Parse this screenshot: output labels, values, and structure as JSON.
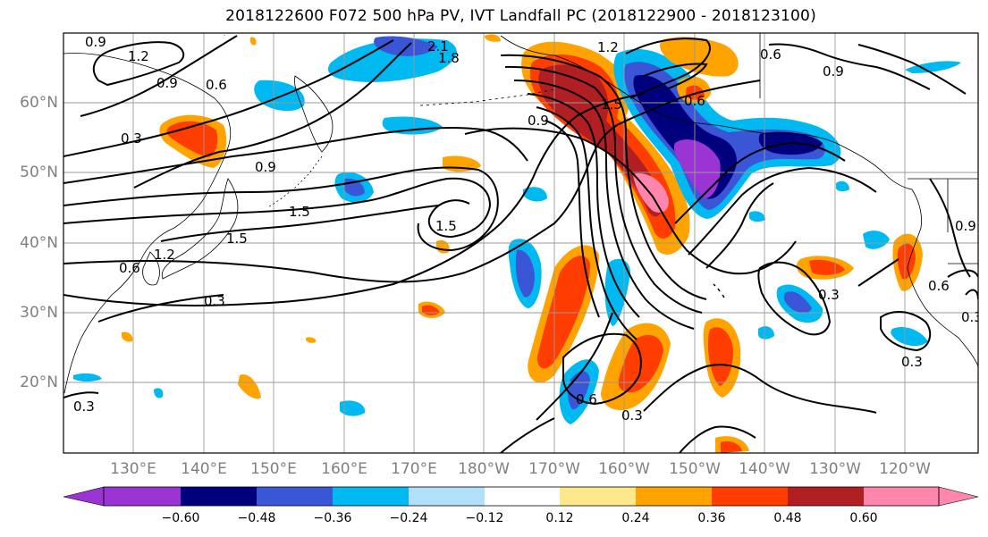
{
  "title": "2018122600 F072 500 hPa PV, IVT Landfall PC (2018122900 - 2018123100)",
  "map": {
    "lon_labels": [
      "130°E",
      "140°E",
      "150°E",
      "160°E",
      "170°E",
      "180°W",
      "170°W",
      "160°W",
      "150°W",
      "140°W",
      "130°W",
      "120°W"
    ],
    "lat_labels": [
      "60°N",
      "50°N",
      "40°N",
      "30°N",
      "20°N"
    ],
    "contour_labels": [
      "0.9",
      "1.2",
      "0.9",
      "0.6",
      "0.3",
      "0.9",
      "1.5",
      "1.5",
      "1.2",
      "0.6",
      "0.3",
      "1.5",
      "2.1",
      "1.8",
      "1.2",
      "0.9",
      "0.6",
      "1.5",
      "0.6",
      "0.9",
      "0.9",
      "0.3",
      "0.3",
      "0.6",
      "0.3",
      "0.6",
      "0.3",
      "0.9",
      "1.2",
      "0.6",
      "0.3",
      "0.3"
    ]
  },
  "colorbar": {
    "ticks": [
      "−0.60",
      "−0.48",
      "−0.36",
      "−0.24",
      "−0.12",
      "0.12",
      "0.24",
      "0.36",
      "0.48",
      "0.60"
    ],
    "colors": [
      "#9a35d3",
      "#00007f",
      "#3a56d6",
      "#00b9f1",
      "#b1e0fb",
      "#ffffff",
      "#fde98b",
      "#ffa300",
      "#ff3d00",
      "#b21f22",
      "#ff86ad"
    ]
  }
}
